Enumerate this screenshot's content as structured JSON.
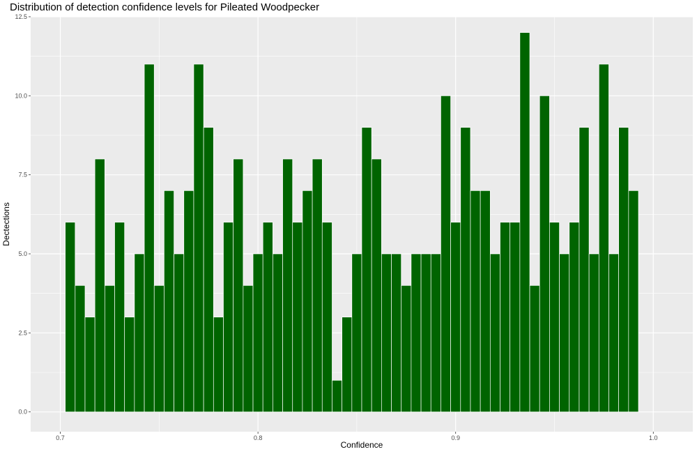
{
  "chart_data": {
    "type": "bar",
    "title": "Distribution of detection confidence levels for Pileated Woodpecker",
    "xlabel": "Confidence",
    "ylabel": "Dectections",
    "xlim": [
      0.685,
      1.02
    ],
    "ylim": [
      -0.625,
      12.5
    ],
    "bin_width": 0.005,
    "x_ticks": [
      0.7,
      0.8,
      0.9,
      1.0
    ],
    "x_tick_labels": [
      "0.7",
      "0.8",
      "0.9",
      "1.0"
    ],
    "y_ticks": [
      0,
      2.5,
      5,
      7.5,
      10,
      12.5
    ],
    "y_tick_labels": [
      "0.0",
      "2.5",
      "5.0",
      "7.5",
      "10.0",
      "12.5"
    ],
    "x": [
      0.705,
      0.71,
      0.715,
      0.72,
      0.725,
      0.73,
      0.735,
      0.74,
      0.745,
      0.75,
      0.755,
      0.76,
      0.765,
      0.77,
      0.775,
      0.78,
      0.785,
      0.79,
      0.795,
      0.8,
      0.805,
      0.81,
      0.815,
      0.82,
      0.825,
      0.83,
      0.835,
      0.84,
      0.845,
      0.85,
      0.855,
      0.86,
      0.865,
      0.87,
      0.875,
      0.88,
      0.885,
      0.89,
      0.895,
      0.9,
      0.905,
      0.91,
      0.915,
      0.92,
      0.925,
      0.93,
      0.935,
      0.94,
      0.945,
      0.95,
      0.955,
      0.96,
      0.965,
      0.97,
      0.975,
      0.98,
      0.985,
      0.99
    ],
    "values": [
      6,
      4,
      3,
      8,
      4,
      6,
      3,
      5,
      11,
      4,
      7,
      5,
      7,
      11,
      9,
      3,
      6,
      8,
      4,
      5,
      6,
      5,
      8,
      6,
      7,
      8,
      6,
      1,
      3,
      5,
      9,
      8,
      5,
      5,
      4,
      5,
      5,
      5,
      10,
      6,
      9,
      7,
      7,
      5,
      6,
      6,
      12,
      4,
      10,
      6,
      5,
      6,
      9,
      5,
      11,
      5,
      9,
      7
    ],
    "bar_color": "#006400",
    "bar_outline": "#ffffff",
    "panel_background": "#ebebeb",
    "grid": true,
    "legend": "none"
  }
}
